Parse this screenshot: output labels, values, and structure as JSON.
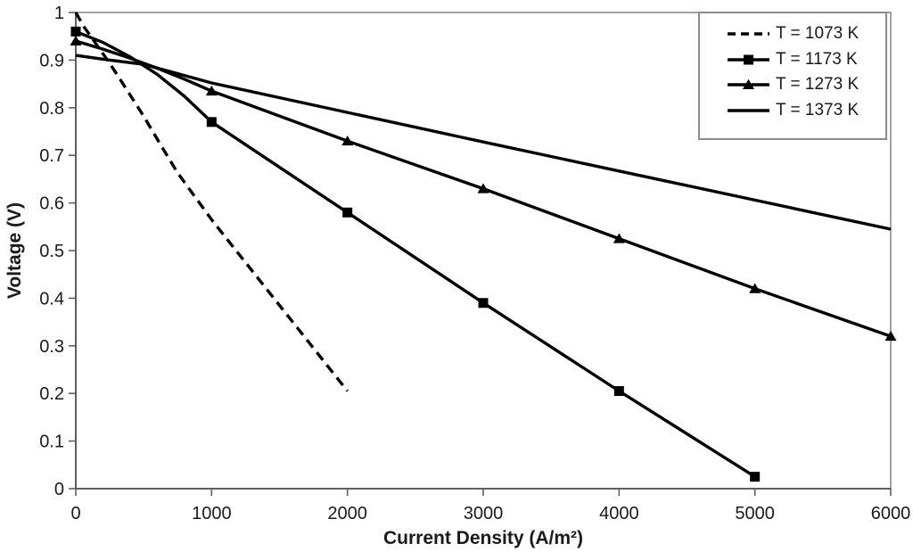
{
  "chart_data": {
    "type": "line",
    "title": "",
    "xlabel": "Current Density (A/m²)",
    "ylabel": "Voltage (V)",
    "xlim": [
      0,
      6000
    ],
    "ylim": [
      0,
      1
    ],
    "grid": false,
    "legend_position": "top-right",
    "x_tick_values": [
      0,
      1000,
      2000,
      3000,
      4000,
      5000,
      6000
    ],
    "x_tick_labels": [
      "0",
      "1000",
      "2000",
      "3000",
      "4000",
      "5000",
      "6000"
    ],
    "y_tick_values": [
      0,
      0.1,
      0.2,
      0.3,
      0.4,
      0.5,
      0.6,
      0.7,
      0.8,
      0.9,
      1
    ],
    "y_tick_labels": [
      "0",
      "0.1",
      "0.2",
      "0.3",
      "0.4",
      "0.5",
      "0.6",
      "0.7",
      "0.8",
      "0.9",
      "1"
    ],
    "series": [
      {
        "name": "T = 1073 K",
        "line": "dashed",
        "marker": "none",
        "color": "#000000",
        "points": [
          [
            0,
            1.0
          ],
          [
            60,
            0.97
          ],
          [
            125,
            0.944
          ],
          [
            250,
            0.893
          ],
          [
            375,
            0.838
          ],
          [
            500,
            0.782
          ],
          [
            625,
            0.722
          ],
          [
            750,
            0.663
          ],
          [
            1000,
            0.565
          ],
          [
            1250,
            0.475
          ],
          [
            1500,
            0.385
          ],
          [
            1750,
            0.295
          ],
          [
            2000,
            0.205
          ]
        ],
        "markers": []
      },
      {
        "name": "T = 1173 K",
        "line": "solid",
        "marker": "square",
        "color": "#000000",
        "points": [
          [
            0,
            0.96
          ],
          [
            200,
            0.937
          ],
          [
            400,
            0.907
          ],
          [
            600,
            0.87
          ],
          [
            800,
            0.824
          ],
          [
            1000,
            0.77
          ],
          [
            2000,
            0.58
          ],
          [
            3000,
            0.39
          ],
          [
            4000,
            0.205
          ],
          [
            5000,
            0.025
          ]
        ],
        "markers": [
          [
            0,
            0.96
          ],
          [
            1000,
            0.77
          ],
          [
            2000,
            0.58
          ],
          [
            3000,
            0.39
          ],
          [
            4000,
            0.205
          ],
          [
            5000,
            0.025
          ]
        ]
      },
      {
        "name": "T = 1273 K",
        "line": "solid",
        "marker": "triangle",
        "color": "#000000",
        "points": [
          [
            0,
            0.94
          ],
          [
            200,
            0.923
          ],
          [
            400,
            0.904
          ],
          [
            600,
            0.883
          ],
          [
            800,
            0.86
          ],
          [
            1000,
            0.835
          ],
          [
            2000,
            0.73
          ],
          [
            3000,
            0.63
          ],
          [
            4000,
            0.525
          ],
          [
            5000,
            0.42
          ],
          [
            6000,
            0.32
          ]
        ],
        "markers": [
          [
            0,
            0.94
          ],
          [
            1000,
            0.835
          ],
          [
            2000,
            0.73
          ],
          [
            3000,
            0.63
          ],
          [
            4000,
            0.525
          ],
          [
            5000,
            0.42
          ],
          [
            6000,
            0.32
          ]
        ]
      },
      {
        "name": "T = 1373 K",
        "line": "solid",
        "marker": "none",
        "color": "#000000",
        "points": [
          [
            0,
            0.91
          ],
          [
            250,
            0.9
          ],
          [
            500,
            0.891
          ],
          [
            1000,
            0.852
          ],
          [
            2000,
            0.79
          ],
          [
            3000,
            0.728
          ],
          [
            4000,
            0.667
          ],
          [
            5000,
            0.606
          ],
          [
            6000,
            0.545
          ]
        ],
        "markers": []
      }
    ]
  }
}
